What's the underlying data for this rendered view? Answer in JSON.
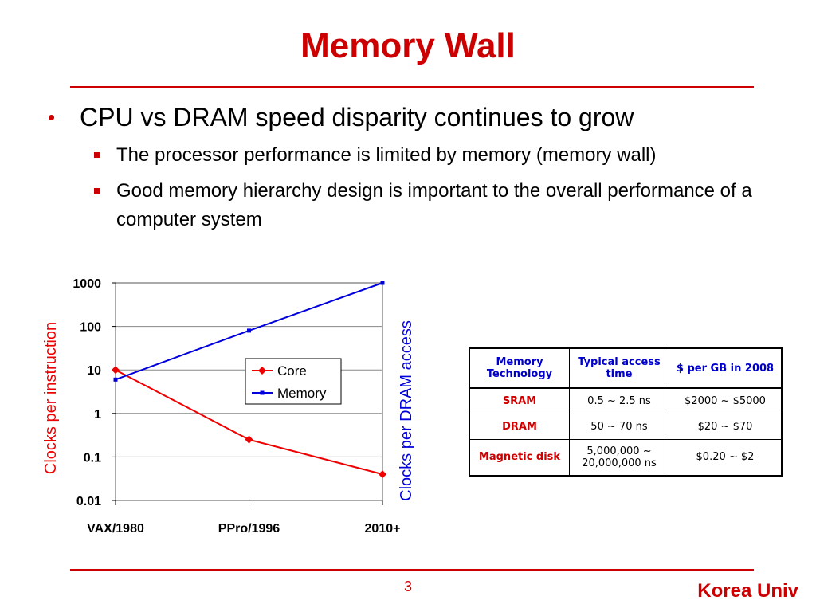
{
  "slide": {
    "title": "Memory Wall",
    "page_number": "3",
    "footer": "Korea Univ"
  },
  "bullets": {
    "main": "CPU vs DRAM speed disparity continues to grow",
    "sub1": "The processor performance is limited by memory (memory wall)",
    "sub2": "Good memory hierarchy design is important to the overall performance of a computer system"
  },
  "colors": {
    "accent": "#cc0000",
    "core": "#ee0000",
    "memory": "#0000dd",
    "table_header": "#0000cc"
  },
  "chart_data": {
    "type": "line",
    "categories": [
      "VAX/1980",
      "PPro/1996",
      "2010+"
    ],
    "y_scale": "log",
    "ylim": [
      0.01,
      1000
    ],
    "y_ticks": [
      "1000",
      "100",
      "10",
      "1",
      "0.1",
      "0.01"
    ],
    "ylabel_left": "Clocks per instruction",
    "ylabel_right": "Clocks per DRAM access",
    "legend_position": "center-right",
    "series": [
      {
        "name": "Core",
        "values": [
          10,
          0.25,
          0.04
        ],
        "marker": "diamond"
      },
      {
        "name": "Memory",
        "values": [
          6,
          80,
          1000
        ],
        "marker": "square"
      }
    ]
  },
  "table": {
    "headers": [
      "Memory Technology",
      "Typical access time",
      "$ per GB in 2008"
    ],
    "rows": [
      {
        "tech": "SRAM",
        "time": "0.5 ~ 2.5 ns",
        "cost": "$2000 ~ $5000"
      },
      {
        "tech": "DRAM",
        "time": "50 ~ 70 ns",
        "cost": "$20 ~ $70"
      },
      {
        "tech": "Magnetic disk",
        "time": "5,000,000 ~ 20,000,000 ns",
        "cost": "$0.20 ~ $2"
      }
    ]
  }
}
